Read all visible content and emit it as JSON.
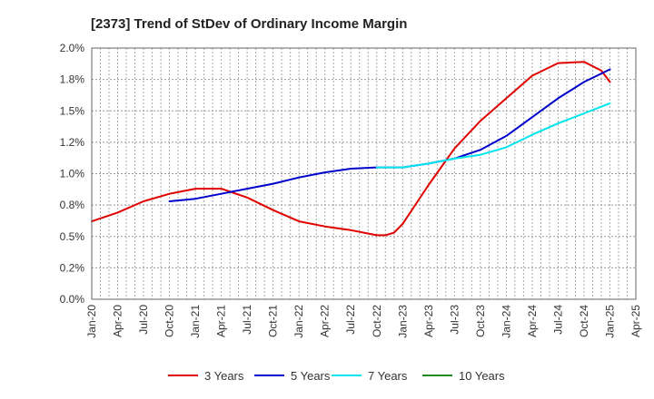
{
  "chart_data": {
    "type": "line",
    "title": "[2373]  Trend of StDev of Ordinary Income Margin",
    "xlabel": "",
    "ylabel": "",
    "x_ticks": [
      "Jan-20",
      "Apr-20",
      "Jul-20",
      "Oct-20",
      "Jan-21",
      "Apr-21",
      "Jul-21",
      "Oct-21",
      "Jan-22",
      "Apr-22",
      "Jul-22",
      "Oct-22",
      "Jan-23",
      "Apr-23",
      "Jul-23",
      "Oct-23",
      "Jan-24",
      "Apr-24",
      "Jul-24",
      "Oct-24",
      "Jan-25",
      "Apr-25"
    ],
    "y_ticks": [
      {
        "value": 0.0,
        "label": "0.0%"
      },
      {
        "value": 0.25,
        "label": "0.2%"
      },
      {
        "value": 0.5,
        "label": "0.5%"
      },
      {
        "value": 0.75,
        "label": "0.8%"
      },
      {
        "value": 1.0,
        "label": "1.0%"
      },
      {
        "value": 1.25,
        "label": "1.2%"
      },
      {
        "value": 1.5,
        "label": "1.5%"
      },
      {
        "value": 1.75,
        "label": "1.8%"
      },
      {
        "value": 2.0,
        "label": "2.0%"
      }
    ],
    "ylim": [
      0,
      2.0
    ],
    "grid": true,
    "legend_position": "bottom",
    "series": [
      {
        "name": "3 Years",
        "color": "#e00000",
        "points": [
          [
            "Jan-20",
            0.62
          ],
          [
            "Apr-20",
            0.69
          ],
          [
            "Jul-20",
            0.78
          ],
          [
            "Oct-20",
            0.84
          ],
          [
            "Jan-21",
            0.88
          ],
          [
            "Apr-21",
            0.88
          ],
          [
            "Jul-21",
            0.81
          ],
          [
            "Oct-21",
            0.71
          ],
          [
            "Jan-22",
            0.62
          ],
          [
            "Apr-22",
            0.58
          ],
          [
            "Jul-22",
            0.55
          ],
          [
            "Oct-22",
            0.51
          ],
          [
            "Nov-22",
            0.51
          ],
          [
            "Dec-22",
            0.53
          ],
          [
            "Jan-23",
            0.6
          ],
          [
            "Apr-23",
            0.91
          ],
          [
            "Jul-23",
            1.2
          ],
          [
            "Oct-23",
            1.42
          ],
          [
            "Jan-24",
            1.6
          ],
          [
            "Apr-24",
            1.78
          ],
          [
            "Jul-24",
            1.88
          ],
          [
            "Oct-24",
            1.89
          ],
          [
            "Dec-24",
            1.82
          ],
          [
            "Jan-25",
            1.73
          ]
        ]
      },
      {
        "name": "5 Years",
        "color": "#0000cc",
        "points": [
          [
            "Oct-20",
            0.78
          ],
          [
            "Jan-21",
            0.8
          ],
          [
            "Apr-21",
            0.84
          ],
          [
            "Jul-21",
            0.88
          ],
          [
            "Oct-21",
            0.92
          ],
          [
            "Jan-22",
            0.97
          ],
          [
            "Apr-22",
            1.01
          ],
          [
            "Jul-22",
            1.04
          ],
          [
            "Oct-22",
            1.05
          ],
          [
            "Jan-23",
            1.05
          ],
          [
            "Apr-23",
            1.08
          ],
          [
            "Jul-23",
            1.12
          ],
          [
            "Oct-23",
            1.19
          ],
          [
            "Jan-24",
            1.3
          ],
          [
            "Apr-24",
            1.45
          ],
          [
            "Jul-24",
            1.6
          ],
          [
            "Oct-24",
            1.73
          ],
          [
            "Jan-25",
            1.83
          ]
        ]
      },
      {
        "name": "7 Years",
        "color": "#00e5ee",
        "points": [
          [
            "Oct-22",
            1.05
          ],
          [
            "Jan-23",
            1.05
          ],
          [
            "Apr-23",
            1.08
          ],
          [
            "Jul-23",
            1.12
          ],
          [
            "Oct-23",
            1.15
          ],
          [
            "Jan-24",
            1.21
          ],
          [
            "Apr-24",
            1.31
          ],
          [
            "Jul-24",
            1.4
          ],
          [
            "Oct-24",
            1.48
          ],
          [
            "Jan-25",
            1.56
          ]
        ]
      },
      {
        "name": "10 Years",
        "color": "#228b22",
        "points": []
      }
    ]
  }
}
